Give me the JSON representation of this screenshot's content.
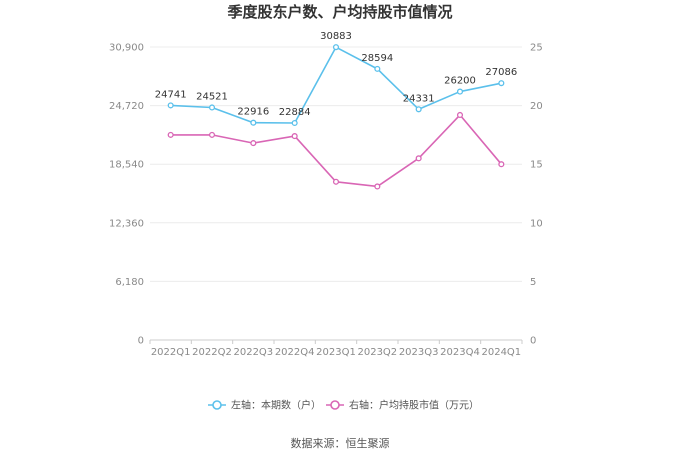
{
  "chart_data": {
    "type": "line",
    "title": "季度股东户数、户均持股市值情况",
    "categories": [
      "2022Q1",
      "2022Q2",
      "2022Q3",
      "2022Q4",
      "2023Q1",
      "2023Q2",
      "2023Q3",
      "2023Q4",
      "2024Q1"
    ],
    "y_left": {
      "ticks": [
        "0",
        "6,180",
        "12,360",
        "18,540",
        "24,720",
        "30,900"
      ],
      "ylim": [
        0,
        30900
      ]
    },
    "y_right": {
      "ticks": [
        "0",
        "5",
        "10",
        "15",
        "20",
        "25"
      ],
      "ylim": [
        0,
        25
      ]
    },
    "series": [
      {
        "name": "左轴：本期数（户）",
        "axis": "left",
        "color": "#5bc0eb",
        "values": [
          24741,
          24521,
          22916,
          22884,
          30883,
          28594,
          24331,
          26200,
          27086
        ],
        "labels": [
          "24741",
          "24521",
          "22916",
          "22884",
          "30883",
          "28594",
          "24331",
          "26200",
          "27086"
        ]
      },
      {
        "name": "右轴：户均持股市值（万元）",
        "axis": "right",
        "color": "#d966b5",
        "values": [
          17.5,
          17.5,
          16.8,
          17.4,
          13.5,
          13.1,
          15.5,
          19.2,
          15.0
        ]
      }
    ],
    "grid": true,
    "legend_position": "bottom"
  },
  "source_text": "数据来源：恒生聚源"
}
